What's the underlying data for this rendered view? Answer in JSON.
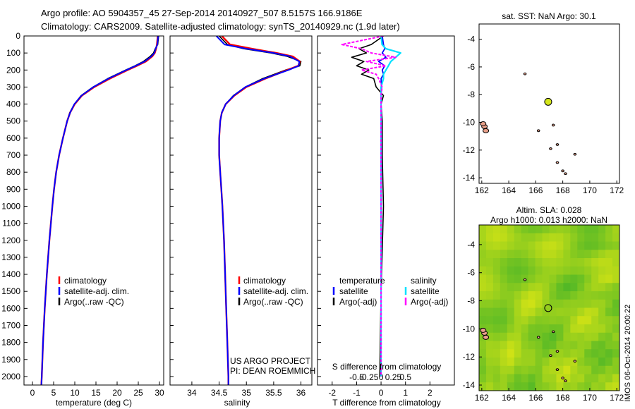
{
  "title": {
    "line1": "Argo profile: AO 5904357_45 27-Sep-2014 20140927_507 8.5157S 166.9186E",
    "line2": "Climatology: CARS2009. Satellite-adjusted climatology: synTS_20140929.nc (1.9d later)"
  },
  "credits": {
    "project": "US ARGO PROJECT",
    "pi": "PI: DEAN ROEMMICH",
    "watermark": "IMOS 06-Oct-2014 20:00:22"
  },
  "colors": {
    "climatology": "#ff0000",
    "satellite": "#0000ff",
    "argo": "#000000",
    "salinity_satellite": "#00e0ff",
    "salinity_argo": "#ff00ff",
    "float_marker": "#d4e61a",
    "land": "#e8a08a"
  },
  "chart_data": [
    {
      "id": "temperature",
      "type": "line",
      "xlabel": "temperature (deg C)",
      "ylabel": "",
      "xlim": [
        -2,
        31
      ],
      "ylim": [
        0,
        2050
      ],
      "y_reversed": true,
      "xticks": [
        0,
        5,
        10,
        15,
        20,
        25,
        30
      ],
      "yticks": [
        0,
        100,
        200,
        300,
        400,
        500,
        600,
        700,
        800,
        900,
        1000,
        1100,
        1200,
        1300,
        1400,
        1500,
        1600,
        1700,
        1800,
        1900,
        2000
      ],
      "depth": [
        0,
        50,
        75,
        100,
        120,
        150,
        175,
        200,
        250,
        300,
        350,
        400,
        450,
        500,
        600,
        700,
        800,
        900,
        1000,
        1200,
        1400,
        1600,
        1800,
        2000,
        2050
      ],
      "series": [
        {
          "name": "climatology",
          "values": [
            29.6,
            29.4,
            29.2,
            28.9,
            28.3,
            26.8,
            24.7,
            22.5,
            18.3,
            14.6,
            11.7,
            10.0,
            8.9,
            8.2,
            7.2,
            6.3,
            5.6,
            5.1,
            4.7,
            4.0,
            3.4,
            2.9,
            2.5,
            2.2,
            2.1
          ]
        },
        {
          "name": "satellite-adj. clim.",
          "values": [
            29.7,
            29.5,
            29.1,
            28.8,
            28.1,
            26.5,
            24.4,
            22.2,
            18.0,
            14.4,
            11.6,
            9.9,
            8.9,
            8.2,
            7.2,
            6.3,
            5.6,
            5.1,
            4.7,
            4.0,
            3.4,
            2.9,
            2.5,
            2.2,
            2.1
          ]
        },
        {
          "name": "Argo(..raw -QC)",
          "values": [
            29.8,
            29.6,
            29.0,
            28.6,
            27.8,
            26.2,
            24.2,
            22.0,
            17.8,
            14.3,
            11.5,
            9.9,
            8.8,
            8.2,
            7.2,
            6.3,
            5.6,
            5.1,
            4.7,
            4.0,
            3.4,
            2.9,
            2.5,
            2.2,
            2.1
          ]
        }
      ],
      "legend": [
        "climatology",
        "satellite-adj. clim.",
        "Argo(..raw -QC)"
      ],
      "legend_position": "lower-center",
      "grid": false
    },
    {
      "id": "salinity",
      "type": "line",
      "xlabel": "salinity",
      "xlim": [
        33.6,
        36.2
      ],
      "ylim": [
        0,
        2050
      ],
      "y_reversed": true,
      "xticks": [
        34,
        34.5,
        35,
        35.5,
        36
      ],
      "depth": [
        0,
        50,
        75,
        100,
        120,
        150,
        175,
        200,
        250,
        300,
        350,
        400,
        450,
        500,
        600,
        700,
        800,
        900,
        1000,
        1200,
        1400,
        1600,
        1800,
        2000,
        2050
      ],
      "series": [
        {
          "name": "climatology",
          "values": [
            34.55,
            34.7,
            35.1,
            35.55,
            35.85,
            35.98,
            35.95,
            35.75,
            35.35,
            35.0,
            34.78,
            34.62,
            34.55,
            34.52,
            34.5,
            34.5,
            34.52,
            34.54,
            34.56,
            34.59,
            34.61,
            34.63,
            34.65,
            34.67,
            34.67
          ]
        },
        {
          "name": "satellite-adj. clim.",
          "values": [
            34.45,
            34.6,
            35.0,
            35.5,
            35.8,
            35.97,
            35.96,
            35.77,
            35.33,
            34.98,
            34.77,
            34.62,
            34.55,
            34.52,
            34.5,
            34.5,
            34.52,
            34.54,
            34.56,
            34.59,
            34.61,
            34.63,
            34.65,
            34.67,
            34.67
          ]
        },
        {
          "name": "Argo(..raw -QC)",
          "values": [
            34.5,
            34.65,
            34.95,
            35.45,
            35.75,
            36.0,
            35.98,
            35.72,
            35.3,
            34.98,
            34.76,
            34.62,
            34.55,
            34.52,
            34.5,
            34.5,
            34.52,
            34.54,
            34.56,
            34.59,
            34.61,
            34.63,
            34.65,
            34.67,
            34.67
          ]
        }
      ],
      "legend": [
        "climatology",
        "satellite-adj. clim.",
        "Argo(..raw -QC)"
      ],
      "legend_position": "lower-center",
      "grid": false
    },
    {
      "id": "difference",
      "type": "line",
      "xlabel": "T difference from climatology",
      "xlabel_top": "S difference from climatology",
      "xlim": [
        -2.6,
        3.0
      ],
      "ylim": [
        0,
        2050
      ],
      "y_reversed": true,
      "xticks_T": [
        -2,
        -1,
        0,
        1,
        2
      ],
      "xticks_S": [
        -0.5,
        -0.25,
        0,
        0.25,
        0.5
      ],
      "xticks_S_labels": [
        "-0.5",
        "-0.25",
        "0",
        "0.25",
        "0.5"
      ],
      "depth": [
        0,
        50,
        75,
        100,
        125,
        150,
        175,
        200,
        225,
        250,
        300,
        350,
        400,
        500,
        700,
        1000,
        1500,
        2000
      ],
      "series": [
        {
          "name": "temperature satellite",
          "group": "temperature",
          "values": [
            0.05,
            0.1,
            0.15,
            0.05,
            0.2,
            -0.1,
            0.15,
            0.05,
            0.1,
            0.0,
            0.02,
            0.0,
            0.0,
            0.0,
            0.0,
            0.0,
            0.0,
            0.0
          ]
        },
        {
          "name": "temperature Argo(-adj)",
          "group": "temperature",
          "values": [
            0.1,
            -0.4,
            -0.9,
            -0.6,
            -1.2,
            -0.7,
            -1.0,
            -0.5,
            -0.8,
            -0.3,
            -0.2,
            0.1,
            0.0,
            0.05,
            0.05,
            0.1,
            0.0,
            -0.05
          ]
        },
        {
          "name": "salinity satellite",
          "group": "salinity",
          "values": [
            0.0,
            0.02,
            0.1,
            0.4,
            0.3,
            0.2,
            0.15,
            0.1,
            0.05,
            0.05,
            0.0,
            0.0,
            0.0,
            0.0,
            0.0,
            0.0,
            0.0,
            0.0
          ]
        },
        {
          "name": "salinity Argo(-adj)",
          "group": "salinity",
          "values": [
            0.05,
            -0.8,
            -0.4,
            -0.2,
            0.3,
            -0.3,
            0.1,
            -0.4,
            -0.1,
            -0.05,
            0.02,
            0.0,
            0.0,
            0.0,
            0.0,
            0.0,
            0.0,
            0.0
          ]
        }
      ],
      "legend": {
        "temperature_header": "temperature",
        "salinity_header": "salinity",
        "satellite": "satellite",
        "argo": "Argo(-adj)"
      },
      "grid": false
    },
    {
      "id": "sst_map",
      "type": "scatter",
      "title": "sat. SST: NaN Argo: 30.1",
      "xlim": [
        161.8,
        172.2
      ],
      "ylim": [
        -14.4,
        -2.9
      ],
      "xticks": [
        162,
        164,
        166,
        168,
        170,
        172
      ],
      "yticks": [
        -4,
        -6,
        -8,
        -10,
        -12,
        -14
      ],
      "float_position": {
        "lon": 166.9186,
        "lat": -8.5157
      },
      "grid": false
    },
    {
      "id": "sla_map",
      "type": "heatmap",
      "title_line1": "Altim. SLA: 0.028",
      "title_line2": "Argo h1000: 0.013 h2000: NaN",
      "xlim": [
        161.8,
        172.2
      ],
      "ylim": [
        -14.4,
        -2.6
      ],
      "xticks": [
        162,
        164,
        166,
        168,
        170,
        172
      ],
      "yticks": [
        -4,
        -6,
        -8,
        -10,
        -12,
        -14
      ],
      "float_position": {
        "lon": 166.9186,
        "lat": -8.5157
      },
      "grid": false
    }
  ]
}
